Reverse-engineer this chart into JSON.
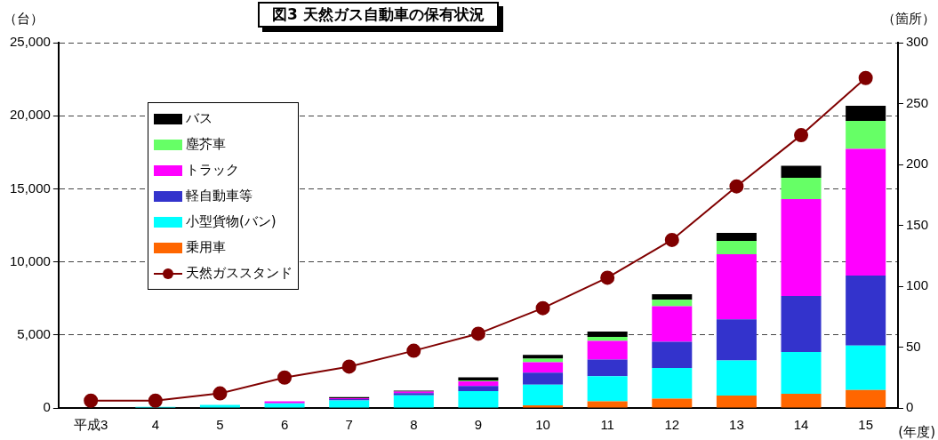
{
  "chart_data": {
    "type": "bar",
    "title": "図3 天然ガス自動車の保有状況",
    "ylabel": "（台）",
    "y2label": "（箇所）",
    "xlabel": "(年度)",
    "categories": [
      "平成3",
      "4",
      "5",
      "6",
      "7",
      "8",
      "9",
      "10",
      "11",
      "12",
      "13",
      "14",
      "15"
    ],
    "stacked": true,
    "grid": "y",
    "legend": "top left",
    "ylim": [
      0,
      25000
    ],
    "yticks": [
      {
        "value": 0,
        "label": "0"
      },
      {
        "value": 5000,
        "label": "5,000"
      },
      {
        "value": 10000,
        "label": "10,000"
      },
      {
        "value": 15000,
        "label": "15,000"
      },
      {
        "value": 20000,
        "label": "20,000"
      },
      {
        "value": 25000,
        "label": "25,000"
      }
    ],
    "y2lim": [
      0,
      300
    ],
    "y2ticks": [
      0,
      50,
      100,
      150,
      200,
      250,
      300
    ],
    "series": [
      {
        "name": "乗用車",
        "color": "#ff6600",
        "values": [
          0,
          0,
          0,
          0,
          0,
          0,
          0,
          190,
          450,
          640,
          850,
          980,
          1230
        ]
      },
      {
        "name": "小型貨物(バン)",
        "color": "#00ffff",
        "values": [
          0,
          80,
          210,
          320,
          510,
          870,
          1150,
          1400,
          1720,
          2100,
          2400,
          2850,
          3040
        ]
      },
      {
        "name": "軽自動車等",
        "color": "#3333cc",
        "values": [
          0,
          0,
          0,
          0,
          100,
          150,
          360,
          830,
          1150,
          1790,
          2810,
          3840,
          4790
        ]
      },
      {
        "name": "トラック",
        "color": "#ff00ff",
        "values": [
          0,
          0,
          0,
          130,
          60,
          110,
          320,
          720,
          1270,
          2440,
          4460,
          6620,
          8670
        ]
      },
      {
        "name": "塵芥車",
        "color": "#66ff66",
        "values": [
          0,
          0,
          0,
          0,
          0,
          null,
          50,
          240,
          280,
          430,
          920,
          1460,
          1910
        ]
      },
      {
        "name": "バス",
        "color": "#000000",
        "values": [
          0,
          0,
          0,
          0,
          80,
          60,
          220,
          260,
          360,
          380,
          550,
          830,
          1040
        ]
      },
      {
        "name": "天然ガススタンド",
        "type": "line",
        "axis": "y2",
        "color": "#800000",
        "marker": "circle",
        "values": [
          6,
          6,
          12,
          25,
          34,
          47,
          61,
          82,
          107,
          138,
          182,
          224,
          271
        ]
      }
    ]
  }
}
